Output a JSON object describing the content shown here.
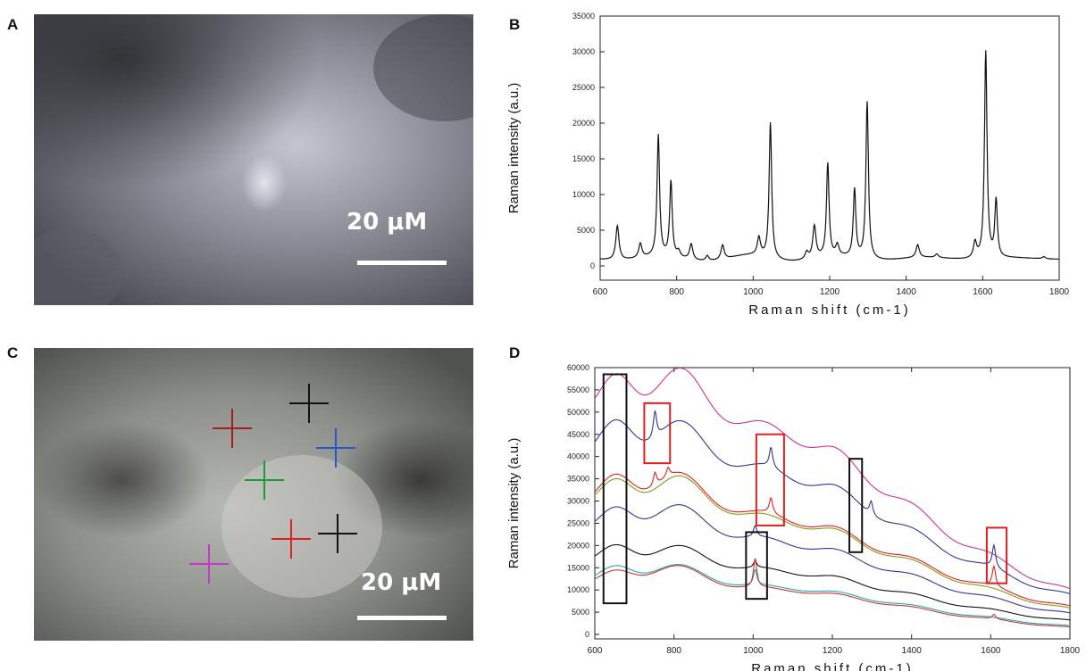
{
  "panels": {
    "a": {
      "letter": "A",
      "scale_label": "20 μM"
    },
    "b": {
      "letter": "B"
    },
    "c": {
      "letter": "C",
      "scale_label": "20 μM",
      "crosshairs": [
        {
          "color": "#a11f1f"
        },
        {
          "color": "#111111"
        },
        {
          "color": "#2a56c6"
        },
        {
          "color": "#1c9a3a"
        },
        {
          "color": "#e02020"
        },
        {
          "color": "#111111"
        },
        {
          "color": "#cc33cc"
        }
      ]
    },
    "d": {
      "letter": "D"
    }
  },
  "chart_data": [
    {
      "id": "B",
      "type": "line",
      "xlabel": "Raman shift (cm-1)",
      "ylabel": "Raman intensity (a.u.)",
      "xlim": [
        600,
        1800
      ],
      "ylim": [
        -2000,
        35000
      ],
      "xticks": [
        "600",
        "800",
        "1000",
        "1200",
        "1400",
        "1600",
        "1800"
      ],
      "yticks": [
        "0",
        "5000",
        "10000",
        "15000",
        "20000",
        "25000",
        "30000",
        "35000"
      ],
      "baseline": 1000,
      "peaks": [
        {
          "x": 645,
          "y": 5800
        },
        {
          "x": 705,
          "y": 3000
        },
        {
          "x": 752,
          "y": 18000
        },
        {
          "x": 785,
          "y": 11500
        },
        {
          "x": 805,
          "y": 1800
        },
        {
          "x": 838,
          "y": 3200
        },
        {
          "x": 880,
          "y": 1700
        },
        {
          "x": 920,
          "y": 3000
        },
        {
          "x": 1015,
          "y": 3500
        },
        {
          "x": 1045,
          "y": 20000
        },
        {
          "x": 1140,
          "y": 2000
        },
        {
          "x": 1160,
          "y": 5500
        },
        {
          "x": 1195,
          "y": 14000
        },
        {
          "x": 1220,
          "y": 2500
        },
        {
          "x": 1265,
          "y": 10500
        },
        {
          "x": 1298,
          "y": 23000
        },
        {
          "x": 1430,
          "y": 2800
        },
        {
          "x": 1480,
          "y": 1500
        },
        {
          "x": 1580,
          "y": 3200
        },
        {
          "x": 1608,
          "y": 30000
        },
        {
          "x": 1635,
          "y": 9000
        },
        {
          "x": 1760,
          "y": 1300
        }
      ],
      "color": "#111111"
    },
    {
      "id": "D",
      "type": "line",
      "xlabel": "Raman shift (cm-1)",
      "ylabel": "Raman intensity (a.u.)",
      "xlim": [
        600,
        1800
      ],
      "ylim": [
        -1000,
        60000
      ],
      "xticks": [
        "600",
        "800",
        "1000",
        "1200",
        "1400",
        "1600",
        "1800"
      ],
      "yticks": [
        "0",
        "5000",
        "10000",
        "15000",
        "20000",
        "25000",
        "30000",
        "35000",
        "40000",
        "45000",
        "50000",
        "55000",
        "60000"
      ],
      "series": [
        {
          "color": "#cc3399",
          "start": 47000,
          "hump": 55000,
          "second": 52500,
          "mid": 48000,
          "end": 9500,
          "peaks": []
        },
        {
          "color": "#333399",
          "start": 38000,
          "hump": 45500,
          "second": 42500,
          "mid": 37000,
          "end": 8500,
          "peaks": [
            {
              "x": 752,
              "y": 6000
            },
            {
              "x": 1045,
              "y": 4500
            },
            {
              "x": 1298,
              "y": 3000
            },
            {
              "x": 1608,
              "y": 5000
            }
          ]
        },
        {
          "color": "#e02020",
          "start": 28000,
          "hump": 34000,
          "second": 32500,
          "mid": 26000,
          "end": 6000,
          "peaks": [
            {
              "x": 752,
              "y": 3000
            },
            {
              "x": 785,
              "y": 2000
            },
            {
              "x": 1045,
              "y": 3500
            },
            {
              "x": 1608,
              "y": 4500
            }
          ]
        },
        {
          "color": "#8a9a1a",
          "start": 27500,
          "hump": 33000,
          "second": 31800,
          "mid": 25500,
          "end": 5500,
          "peaks": []
        },
        {
          "color": "#333399",
          "start": 22000,
          "hump": 27000,
          "second": 26000,
          "mid": 21000,
          "end": 4500,
          "peaks": [
            {
              "x": 1005,
              "y": 2500
            }
          ]
        },
        {
          "color": "#111111",
          "start": 15000,
          "hump": 19000,
          "second": 17800,
          "mid": 14500,
          "end": 3000,
          "peaks": [
            {
              "x": 1005,
              "y": 1500
            }
          ]
        },
        {
          "color": "#22aaaa",
          "start": 11000,
          "hump": 14500,
          "second": 14000,
          "mid": 11000,
          "end": 1800,
          "peaks": [
            {
              "x": 1005,
              "y": 3500
            }
          ]
        },
        {
          "color": "#cc3333",
          "start": 10500,
          "hump": 13500,
          "second": 13800,
          "mid": 10500,
          "end": 1500,
          "peaks": [
            {
              "x": 1005,
              "y": 6500
            },
            {
              "x": 1608,
              "y": 1000
            }
          ]
        }
      ],
      "boxes": [
        {
          "color": "#111111",
          "x0": 622,
          "x1": 680,
          "y0": 7000,
          "y1": 58500
        },
        {
          "color": "#e02020",
          "x0": 725,
          "x1": 790,
          "y0": 38500,
          "y1": 52000
        },
        {
          "color": "#e02020",
          "x0": 1008,
          "x1": 1078,
          "y0": 24500,
          "y1": 45000
        },
        {
          "color": "#111111",
          "x0": 1243,
          "x1": 1275,
          "y0": 18500,
          "y1": 39500
        },
        {
          "color": "#111111",
          "x0": 982,
          "x1": 1035,
          "y0": 8000,
          "y1": 23000
        },
        {
          "color": "#e02020",
          "x0": 1590,
          "x1": 1640,
          "y0": 11500,
          "y1": 24000
        }
      ]
    }
  ]
}
